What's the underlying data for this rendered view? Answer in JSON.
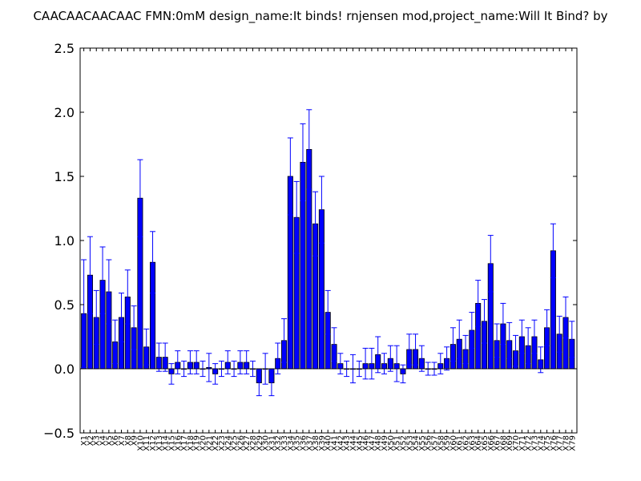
{
  "chart_data": {
    "type": "bar",
    "title": "CAACAACAACAAC  FMN:0mM  design_name:It binds! rnjensen mod,project_name:Will It Bind? by",
    "xlabel": "",
    "ylabel": "",
    "ylim": [
      -0.5,
      2.5
    ],
    "yticks": [
      "2.5",
      "2.0",
      "1.5",
      "1.0",
      "0.5",
      "0.0",
      "−0.5"
    ],
    "ytick_values": [
      2.5,
      2.0,
      1.5,
      1.0,
      0.5,
      0.0,
      -0.5
    ],
    "grid": false,
    "bar_color": "#0000ff",
    "errorbar_color": "#0000ff",
    "categories": [
      "X1",
      "X2",
      "X3",
      "X4",
      "X5",
      "X6",
      "X7",
      "X8",
      "X9",
      "X10",
      "X11",
      "X12",
      "X13",
      "X14",
      "X15",
      "X16",
      "X17",
      "X18",
      "X19",
      "X20",
      "X21",
      "X22",
      "X23",
      "X24",
      "X25",
      "X26",
      "X27",
      "X28",
      "X29",
      "X30",
      "X31",
      "X32",
      "X33",
      "X34",
      "X35",
      "X36",
      "X37",
      "X38",
      "X39",
      "X40",
      "X41",
      "X42",
      "X43",
      "X44",
      "X45",
      "X46",
      "X47",
      "X48",
      "X49",
      "X50",
      "X51",
      "X52",
      "X53",
      "X54",
      "X55",
      "X56",
      "X57",
      "X58",
      "X59",
      "X60",
      "X61",
      "X62",
      "X63",
      "X64",
      "X65",
      "X66",
      "X67",
      "X68",
      "X69",
      "X70",
      "X71",
      "X72",
      "X73",
      "X74",
      "X75",
      "X76",
      "X77",
      "X78",
      "X79"
    ],
    "values": [
      0.43,
      0.73,
      0.4,
      0.69,
      0.6,
      0.21,
      0.4,
      0.56,
      0.32,
      1.33,
      0.17,
      0.83,
      0.09,
      0.09,
      -0.04,
      0.05,
      0.0,
      0.05,
      0.05,
      0.0,
      0.01,
      -0.04,
      0.0,
      0.05,
      0.0,
      0.05,
      0.05,
      0.0,
      -0.11,
      0.0,
      -0.11,
      0.08,
      0.22,
      1.5,
      1.18,
      1.61,
      1.71,
      1.13,
      1.24,
      0.44,
      0.19,
      0.04,
      0.0,
      0.0,
      0.0,
      0.04,
      0.04,
      0.11,
      0.04,
      0.08,
      0.04,
      -0.04,
      0.15,
      0.15,
      0.08,
      0.0,
      0.0,
      0.04,
      0.08,
      0.19,
      0.23,
      0.15,
      0.3,
      0.51,
      0.37,
      0.82,
      0.22,
      0.35,
      0.22,
      0.14,
      0.25,
      0.18,
      0.25,
      0.07,
      0.32,
      0.92,
      0.27,
      0.4,
      0.23
    ],
    "errors": [
      0.42,
      0.3,
      0.21,
      0.26,
      0.25,
      0.17,
      0.19,
      0.21,
      0.17,
      0.3,
      0.14,
      0.24,
      0.11,
      0.11,
      0.08,
      0.09,
      0.06,
      0.09,
      0.09,
      0.06,
      0.11,
      0.08,
      0.06,
      0.09,
      0.06,
      0.09,
      0.09,
      0.06,
      0.1,
      0.12,
      0.1,
      0.12,
      0.17,
      0.3,
      0.28,
      0.3,
      0.31,
      0.25,
      0.26,
      0.17,
      0.13,
      0.08,
      0.06,
      0.11,
      0.06,
      0.12,
      0.12,
      0.14,
      0.08,
      0.1,
      0.14,
      0.07,
      0.12,
      0.12,
      0.1,
      0.05,
      0.05,
      0.08,
      0.09,
      0.13,
      0.15,
      0.11,
      0.14,
      0.18,
      0.17,
      0.22,
      0.13,
      0.16,
      0.14,
      0.12,
      0.13,
      0.14,
      0.13,
      0.1,
      0.14,
      0.21,
      0.14,
      0.16,
      0.14
    ]
  }
}
